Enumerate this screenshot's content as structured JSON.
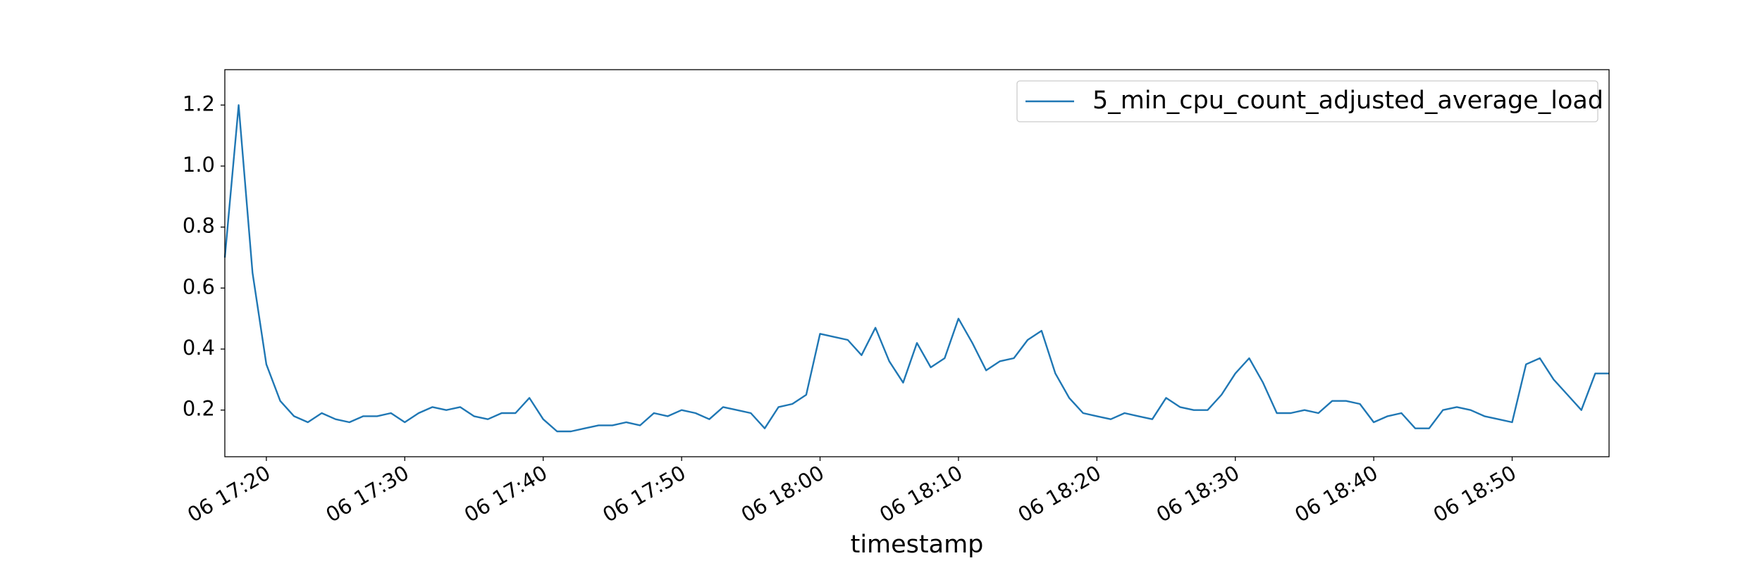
{
  "chart_data": {
    "type": "line",
    "x_label": "timestamp",
    "x": [
      "06 17:17",
      "06 17:18",
      "06 17:19",
      "06 17:20",
      "06 17:21",
      "06 17:22",
      "06 17:23",
      "06 17:24",
      "06 17:25",
      "06 17:26",
      "06 17:27",
      "06 17:28",
      "06 17:29",
      "06 17:30",
      "06 17:31",
      "06 17:32",
      "06 17:33",
      "06 17:34",
      "06 17:35",
      "06 17:36",
      "06 17:37",
      "06 17:38",
      "06 17:39",
      "06 17:40",
      "06 17:41",
      "06 17:42",
      "06 17:43",
      "06 17:44",
      "06 17:45",
      "06 17:46",
      "06 17:47",
      "06 17:48",
      "06 17:49",
      "06 17:50",
      "06 17:51",
      "06 17:52",
      "06 17:53",
      "06 17:54",
      "06 17:55",
      "06 17:56",
      "06 17:57",
      "06 17:58",
      "06 17:59",
      "06 18:00",
      "06 18:01",
      "06 18:02",
      "06 18:03",
      "06 18:04",
      "06 18:05",
      "06 18:06",
      "06 18:07",
      "06 18:08",
      "06 18:09",
      "06 18:10",
      "06 18:11",
      "06 18:12",
      "06 18:13",
      "06 18:14",
      "06 18:15",
      "06 18:16",
      "06 18:17",
      "06 18:18",
      "06 18:19",
      "06 18:20",
      "06 18:21",
      "06 18:22",
      "06 18:23",
      "06 18:24",
      "06 18:25",
      "06 18:26",
      "06 18:27",
      "06 18:28",
      "06 18:29",
      "06 18:30",
      "06 18:31",
      "06 18:32",
      "06 18:33",
      "06 18:34",
      "06 18:35",
      "06 18:36",
      "06 18:37",
      "06 18:38",
      "06 18:39",
      "06 18:40",
      "06 18:41",
      "06 18:42",
      "06 18:43",
      "06 18:44",
      "06 18:45",
      "06 18:46",
      "06 18:47",
      "06 18:48",
      "06 18:49",
      "06 18:50",
      "06 18:51",
      "06 18:52",
      "06 18:53",
      "06 18:54",
      "06 18:55",
      "06 18:56",
      "06 18:57"
    ],
    "series": [
      {
        "name": "5_min_cpu_count_adjusted_average_load",
        "color": "#1f77b4",
        "values": [
          0.7,
          1.2,
          0.65,
          0.35,
          0.23,
          0.18,
          0.16,
          0.19,
          0.17,
          0.16,
          0.18,
          0.18,
          0.19,
          0.16,
          0.19,
          0.21,
          0.2,
          0.21,
          0.18,
          0.17,
          0.19,
          0.19,
          0.24,
          0.17,
          0.13,
          0.13,
          0.14,
          0.15,
          0.15,
          0.16,
          0.15,
          0.19,
          0.18,
          0.2,
          0.19,
          0.17,
          0.21,
          0.2,
          0.19,
          0.14,
          0.21,
          0.22,
          0.25,
          0.45,
          0.44,
          0.43,
          0.38,
          0.47,
          0.36,
          0.29,
          0.42,
          0.34,
          0.37,
          0.5,
          0.42,
          0.33,
          0.36,
          0.37,
          0.43,
          0.46,
          0.32,
          0.24,
          0.19,
          0.18,
          0.17,
          0.19,
          0.18,
          0.17,
          0.24,
          0.21,
          0.2,
          0.2,
          0.25,
          0.32,
          0.37,
          0.29,
          0.19,
          0.19,
          0.2,
          0.19,
          0.23,
          0.23,
          0.22,
          0.16,
          0.18,
          0.19,
          0.14,
          0.14,
          0.2,
          0.21,
          0.2,
          0.18,
          0.17,
          0.16,
          0.35,
          0.37,
          0.3,
          0.25,
          0.2,
          0.32,
          0.32
        ]
      }
    ],
    "xlim": [
      "06 17:17",
      "06 18:57"
    ],
    "xticks": [
      "06 17:20",
      "06 17:30",
      "06 17:40",
      "06 17:50",
      "06 18:00",
      "06 18:10",
      "06 18:20",
      "06 18:30",
      "06 18:40",
      "06 18:50"
    ],
    "ylim": [
      0.047,
      1.316
    ],
    "yticks": [
      0.2,
      0.4,
      0.6,
      0.8,
      1.0,
      1.2
    ],
    "legend": "upper right"
  }
}
